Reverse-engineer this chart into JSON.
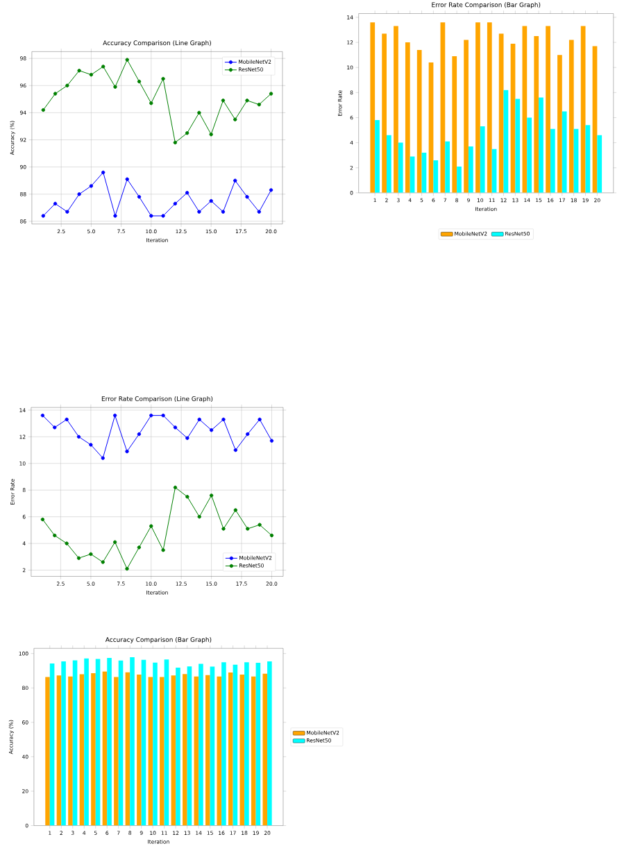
{
  "chart_data": [
    {
      "type": "line",
      "title": "Accuracy Comparison (Line Graph)",
      "xlabel": "Iteration",
      "ylabel": "Accuracy (%)",
      "x": [
        1,
        2,
        3,
        4,
        5,
        6,
        7,
        8,
        9,
        10,
        11,
        12,
        13,
        14,
        15,
        16,
        17,
        18,
        19,
        20
      ],
      "series": [
        {
          "name": "MobileNetV2",
          "color": "#0000ff",
          "values": [
            86.4,
            87.3,
            86.7,
            88.0,
            88.6,
            89.6,
            86.4,
            89.1,
            87.8,
            86.4,
            86.4,
            87.3,
            88.1,
            86.7,
            87.5,
            86.7,
            89.0,
            87.8,
            86.7,
            88.3
          ]
        },
        {
          "name": "ResNet50",
          "color": "#008000",
          "values": [
            94.2,
            95.4,
            96.0,
            97.1,
            96.8,
            97.4,
            95.9,
            97.9,
            96.3,
            94.7,
            96.5,
            91.8,
            92.5,
            94.0,
            92.4,
            94.9,
            93.5,
            94.9,
            94.6,
            95.4
          ]
        }
      ],
      "xlim": [
        0.05,
        20.95
      ],
      "xticks": [
        {
          "value": 2.5,
          "label": "2.5"
        },
        {
          "value": 5,
          "label": "5.0"
        },
        {
          "value": 7.5,
          "label": "7.5"
        },
        {
          "value": 10,
          "label": "10.0"
        },
        {
          "value": 12.5,
          "label": "12.5"
        },
        {
          "value": 15,
          "label": "15.0"
        },
        {
          "value": 17.5,
          "label": "17.5"
        },
        {
          "value": 20,
          "label": "20.0"
        }
      ],
      "ylim": [
        85.8,
        98.5
      ],
      "yticks": [
        86,
        88,
        90,
        92,
        94,
        96,
        98
      ],
      "grid": true,
      "legend": "top right",
      "marker": "circle"
    },
    {
      "type": "bar",
      "title": "Error Rate Comparison (Bar Graph)",
      "xlabel": "Iteration",
      "ylabel": "Error Rate",
      "categories": [
        "1",
        "2",
        "3",
        "4",
        "5",
        "6",
        "7",
        "8",
        "9",
        "10",
        "11",
        "12",
        "13",
        "14",
        "15",
        "16",
        "17",
        "18",
        "19",
        "20"
      ],
      "series": [
        {
          "name": "MobileNetV2",
          "color": "#ffa500",
          "values": [
            13.6,
            12.7,
            13.3,
            12.0,
            11.4,
            10.4,
            13.6,
            10.9,
            12.2,
            13.6,
            13.6,
            12.7,
            11.9,
            13.3,
            12.5,
            13.3,
            11.0,
            12.2,
            13.3,
            11.7
          ]
        },
        {
          "name": "ResNet50",
          "color": "#00ffff",
          "values": [
            5.8,
            4.6,
            4.0,
            2.9,
            3.2,
            2.6,
            4.1,
            2.1,
            3.7,
            5.3,
            3.5,
            8.2,
            7.5,
            6.0,
            7.6,
            5.1,
            6.5,
            5.1,
            5.4,
            4.6
          ]
        }
      ],
      "ylim": [
        0,
        14.3
      ],
      "yticks": [
        0,
        2,
        4,
        6,
        8,
        10,
        12,
        14
      ],
      "legend": "bottom"
    },
    {
      "type": "line",
      "title": "Error Rate Comparison (Line Graph)",
      "xlabel": "Iteration",
      "ylabel": "Error Rate",
      "x": [
        1,
        2,
        3,
        4,
        5,
        6,
        7,
        8,
        9,
        10,
        11,
        12,
        13,
        14,
        15,
        16,
        17,
        18,
        19,
        20
      ],
      "series": [
        {
          "name": "MobileNetV2",
          "color": "#0000ff",
          "values": [
            13.6,
            12.7,
            13.3,
            12.0,
            11.4,
            10.4,
            13.6,
            10.9,
            12.2,
            13.6,
            13.6,
            12.7,
            11.9,
            13.3,
            12.5,
            13.3,
            11.0,
            12.2,
            13.3,
            11.7
          ]
        },
        {
          "name": "ResNet50",
          "color": "#008000",
          "values": [
            5.8,
            4.6,
            4.0,
            2.9,
            3.2,
            2.6,
            4.1,
            2.1,
            3.7,
            5.3,
            3.5,
            8.2,
            7.5,
            6.0,
            7.6,
            5.1,
            6.5,
            5.1,
            5.4,
            4.6
          ]
        }
      ],
      "xlim": [
        0.05,
        20.95
      ],
      "xticks": [
        {
          "value": 2.5,
          "label": "2.5"
        },
        {
          "value": 5,
          "label": "5.0"
        },
        {
          "value": 7.5,
          "label": "7.5"
        },
        {
          "value": 10,
          "label": "10.0"
        },
        {
          "value": 12.5,
          "label": "12.5"
        },
        {
          "value": 15,
          "label": "15.0"
        },
        {
          "value": 17.5,
          "label": "17.5"
        },
        {
          "value": 20,
          "label": "20.0"
        }
      ],
      "ylim": [
        1.53,
        14.2
      ],
      "yticks": [
        2,
        4,
        6,
        8,
        10,
        12,
        14
      ],
      "grid": true,
      "legend": "bottom right",
      "marker": "circle"
    },
    {
      "type": "bar",
      "title": "Accuracy Comparison (Bar Graph)",
      "xlabel": "Iteration",
      "ylabel": "Accuracy (%)",
      "categories": [
        "1",
        "2",
        "3",
        "4",
        "5",
        "6",
        "7",
        "8",
        "9",
        "10",
        "11",
        "12",
        "13",
        "14",
        "15",
        "16",
        "17",
        "18",
        "19",
        "20"
      ],
      "series": [
        {
          "name": "MobileNetV2",
          "color": "#ffa500",
          "values": [
            86.4,
            87.3,
            86.7,
            88.0,
            88.6,
            89.6,
            86.4,
            89.1,
            87.8,
            86.4,
            86.4,
            87.3,
            88.1,
            86.7,
            87.5,
            86.7,
            89.0,
            87.8,
            86.7,
            88.3
          ]
        },
        {
          "name": "ResNet50",
          "color": "#00ffff",
          "values": [
            94.2,
            95.4,
            96.0,
            97.1,
            96.8,
            97.4,
            95.9,
            97.9,
            96.3,
            94.7,
            96.5,
            91.8,
            92.5,
            94.0,
            92.4,
            94.9,
            93.5,
            94.9,
            94.6,
            95.4
          ]
        }
      ],
      "ylim": [
        0,
        103
      ],
      "yticks": [
        0,
        20,
        40,
        60,
        80,
        100
      ],
      "legend": "right"
    }
  ]
}
